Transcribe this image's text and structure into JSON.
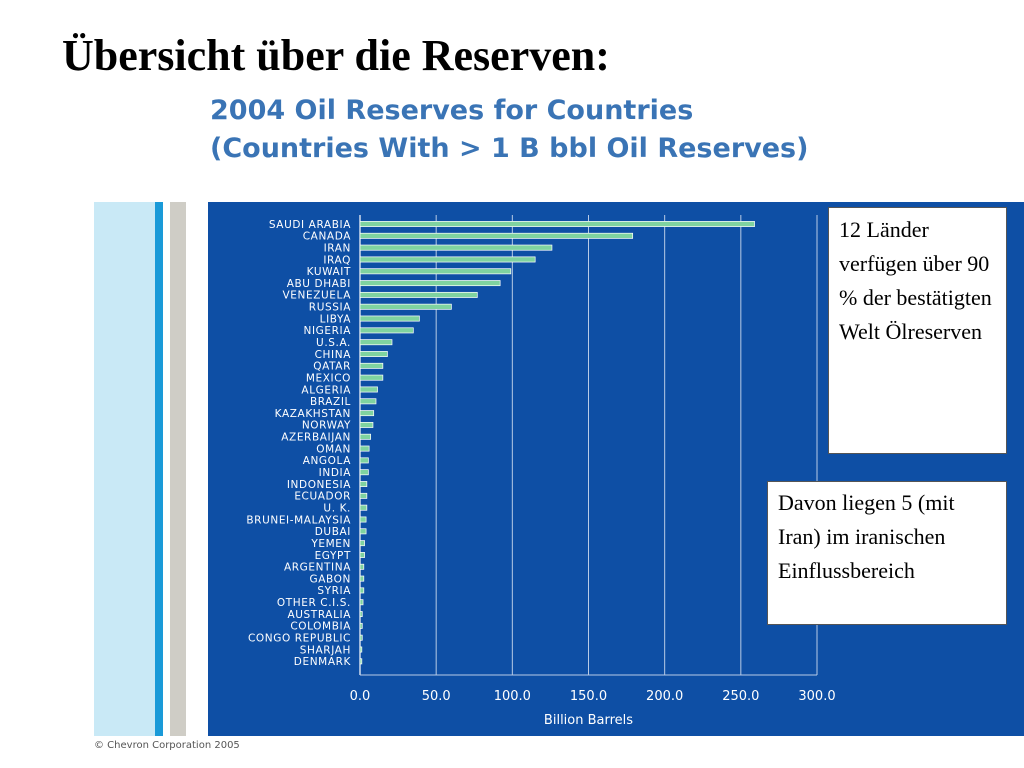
{
  "slide": {
    "title": "Übersicht über die Reserven:",
    "copyright": "© Chevron Corporation 2005"
  },
  "callouts": {
    "first": "12 Länder verfügen über 90 % der bestätigten Welt Ölreserven",
    "second": "Davon liegen 5 (mit Iran) im iranischen Einflussbereich"
  },
  "colors": {
    "panel": "#0e4fa5",
    "bar": "#7fd3a0",
    "text": "#ffffff",
    "title": "#3a74b5"
  },
  "chart_data": {
    "type": "bar",
    "orientation": "horizontal",
    "title": "2004 Oil Reserves for Countries",
    "subtitle": "(Countries With > 1 B bbl Oil Reserves)",
    "xlabel": "Billion Barrels",
    "ylabel": "",
    "xlim": [
      0,
      300
    ],
    "xticks": [
      "0.0",
      "50.0",
      "100.0",
      "150.0",
      "200.0",
      "250.0",
      "300.0"
    ],
    "grid": true,
    "categories": [
      "SAUDI ARABIA",
      "CANADA",
      "IRAN",
      "IRAQ",
      "KUWAIT",
      "ABU DHABI",
      "VENEZUELA",
      "RUSSIA",
      "LIBYA",
      "NIGERIA",
      "U.S.A.",
      "CHINA",
      "QATAR",
      "MEXICO",
      "ALGERIA",
      "BRAZIL",
      "KAZAKHSTAN",
      "NORWAY",
      "AZERBAIJAN",
      "OMAN",
      "ANGOLA",
      "INDIA",
      "INDONESIA",
      "ECUADOR",
      "U. K.",
      "BRUNEI-MALAYSIA",
      "DUBAI",
      "YEMEN",
      "EGYPT",
      "ARGENTINA",
      "GABON",
      "SYRIA",
      "OTHER C.I.S.",
      "AUSTRALIA",
      "COLOMBIA",
      "CONGO REPUBLIC",
      "SHARJAH",
      "DENMARK"
    ],
    "values": [
      259,
      179,
      126,
      115,
      99,
      92,
      77,
      60,
      39,
      35,
      21,
      18,
      15,
      15,
      11.5,
      10.5,
      9,
      8.5,
      7,
      6,
      5.5,
      5.5,
      4.5,
      4.5,
      4.5,
      4,
      4,
      3,
      3,
      2.5,
      2.5,
      2.5,
      2,
      1.5,
      1.5,
      1.5,
      1.2,
      1.2
    ]
  }
}
